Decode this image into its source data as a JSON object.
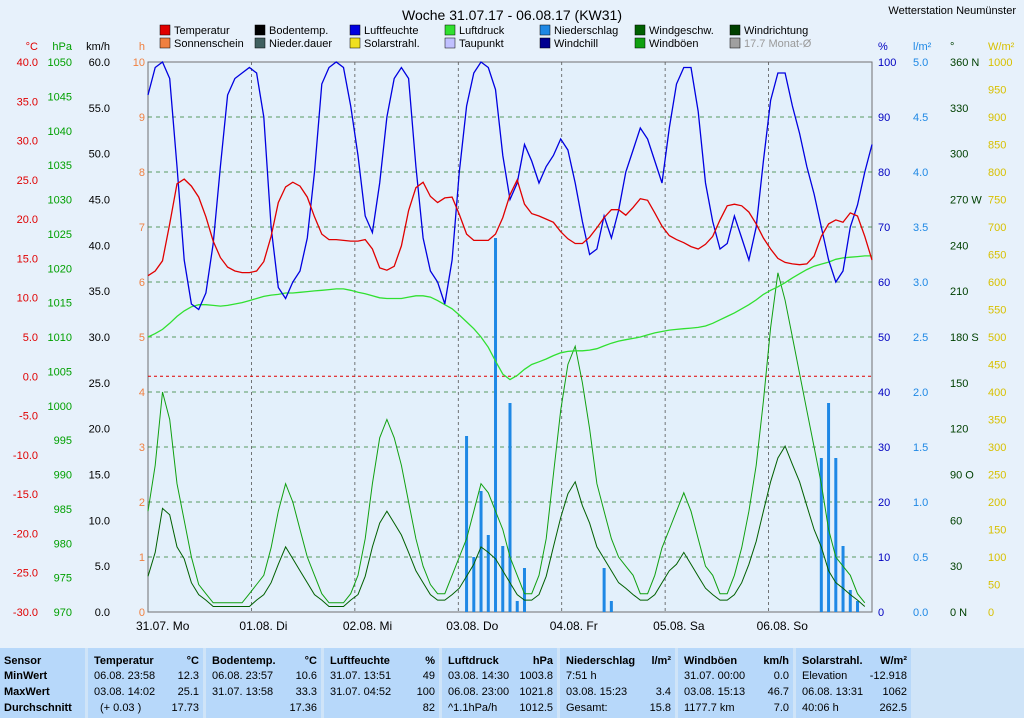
{
  "station": "Wetterstation Neumünster",
  "chart_data": {
    "type": "line",
    "title": "Woche 31.07.17 - 06.08.17 (KW31)",
    "x_labels": [
      "31.07.  Mo",
      "01.08.  Di",
      "02.08.  Mi",
      "03.08.  Do",
      "04.08.  Fr",
      "05.08.  Sa",
      "06.08.  So"
    ],
    "legend": [
      {
        "name": "Temperatur",
        "color": "#e00000"
      },
      {
        "name": "Bodentemp.",
        "color": "#000000"
      },
      {
        "name": "Luftfeuchte",
        "color": "#0000e0"
      },
      {
        "name": "Luftdruck",
        "color": "#30e030"
      },
      {
        "name": "Niederschlag",
        "color": "#1e88e5"
      },
      {
        "name": "Windgeschw.",
        "color": "#006000"
      },
      {
        "name": "Windrichtung",
        "color": "#004000"
      },
      {
        "name": "Sonnenschein",
        "color": "#f08040"
      },
      {
        "name": "Nieder.dauer",
        "color": "#406060"
      },
      {
        "name": "Solarstrahl.",
        "color": "#f0e020"
      },
      {
        "name": "Taupunkt",
        "color": "#c0c0ff"
      },
      {
        "name": "Windchill",
        "color": "#000090"
      },
      {
        "name": "Windböen",
        "color": "#10a010"
      },
      {
        "name": "17.7 Monat-Ø",
        "color": "#a0a0a0"
      }
    ],
    "axes": {
      "temp": {
        "unit": "°C",
        "color": "#e00000",
        "ticks": [
          "40.0",
          "35.0",
          "30.0",
          "25.0",
          "20.0",
          "15.0",
          "10.0",
          "5.0",
          "0.0",
          "-5.0",
          "-10.0",
          "-15.0",
          "-20.0",
          "-25.0",
          "-30.0"
        ]
      },
      "pressure": {
        "unit": "hPa",
        "color": "#00a000",
        "ticks": [
          "1050",
          "1045",
          "1040",
          "1035",
          "1030",
          "1025",
          "1020",
          "1015",
          "1010",
          "1005",
          "1000",
          "995",
          "990",
          "985",
          "980",
          "975",
          "970"
        ]
      },
      "wind": {
        "unit": "km/h",
        "color": "#000000",
        "ticks": [
          "60.0",
          "55.0",
          "50.0",
          "45.0",
          "40.0",
          "35.0",
          "30.0",
          "25.0",
          "20.0",
          "15.0",
          "10.0",
          "5.0",
          "0.0"
        ]
      },
      "sun": {
        "unit": "h",
        "color": "#f08040",
        "ticks": [
          "10",
          "9",
          "8",
          "7",
          "6",
          "5",
          "4",
          "3",
          "2",
          "1",
          "0"
        ]
      },
      "humidity": {
        "unit": "%",
        "color": "#0000c0",
        "ticks": [
          "100",
          "90",
          "80",
          "70",
          "60",
          "50",
          "40",
          "30",
          "20",
          "10",
          "0"
        ]
      },
      "rain": {
        "unit": "l/m²",
        "color": "#1e88e5",
        "ticks": [
          "5.0",
          "4.5",
          "4.0",
          "3.5",
          "3.0",
          "2.5",
          "2.0",
          "1.5",
          "1.0",
          "0.5",
          "0.0"
        ]
      },
      "direction": {
        "unit": "°",
        "color": "#004000",
        "ticks": [
          "360 N",
          "330",
          "300",
          "270 W",
          "240",
          "210",
          "180 S",
          "150",
          "120",
          "90 O",
          "60",
          "30",
          "0 N"
        ]
      },
      "solar": {
        "unit": "W/m²",
        "color": "#d8c000",
        "ticks": [
          "1000",
          "950",
          "900",
          "850",
          "800",
          "750",
          "700",
          "650",
          "600",
          "550",
          "500",
          "450",
          "400",
          "350",
          "300",
          "250",
          "200",
          "150",
          "100",
          "50",
          "0"
        ]
      }
    },
    "series": {
      "temperatur": [
        12.8,
        13.4,
        14.7,
        19.4,
        24.5,
        25.1,
        24.2,
        22.8,
        20.3,
        17.2,
        15.1,
        13.9,
        13.4,
        13.2,
        13.2,
        13.4,
        14.6,
        17.8,
        22.1,
        24.1,
        24.7,
        24.2,
        22.8,
        20.3,
        18.1,
        17.4,
        17.4,
        17.3,
        17.2,
        17.2,
        17.4,
        16.2,
        13.8,
        13.5,
        14.0,
        16.6,
        21.1,
        24.0,
        24.7,
        22.9,
        22.1,
        22.7,
        22.8,
        20.6,
        18.1,
        17.3,
        17.3,
        17.3,
        18.1,
        20.2,
        23.1,
        25.0,
        21.9,
        20.7,
        20.4,
        20.0,
        19.6,
        18.4,
        17.5,
        16.9,
        16.9,
        17.7,
        18.9,
        20.2,
        21.2,
        21.2,
        20.5,
        21.5,
        22.6,
        22.4,
        20.8,
        19.1,
        17.9,
        17.4,
        17.0,
        16.5,
        16.2,
        16.8,
        17.8,
        19.9,
        21.7,
        21.9,
        21.7,
        20.9,
        19.4,
        17.6,
        16.2,
        15.0,
        14.5,
        14.3,
        14.2,
        14.3,
        15.3,
        17.8,
        19.4,
        19.9,
        19.6,
        20.8,
        20.4,
        17.8,
        14.8
      ],
      "luftfeuchte": [
        94,
        99,
        100,
        97,
        81,
        64,
        56,
        55,
        58,
        67,
        81,
        94,
        97,
        98,
        99,
        98,
        90,
        70,
        59,
        57,
        60,
        62,
        68,
        80,
        96,
        99,
        100,
        99,
        92,
        83,
        72,
        69,
        78,
        90,
        97,
        99,
        97,
        81,
        68,
        62,
        60,
        56,
        64,
        80,
        92,
        98,
        100,
        99,
        95,
        83,
        75,
        78,
        85,
        82,
        78,
        81,
        83,
        86,
        84,
        78,
        71,
        65,
        66,
        72,
        68,
        73,
        80,
        84,
        88,
        86,
        82,
        78,
        88,
        96,
        99,
        99,
        91,
        78,
        71,
        66,
        67,
        72,
        68,
        64,
        70,
        82,
        93,
        98,
        98,
        92,
        87,
        81,
        76,
        70,
        64,
        60,
        62,
        70,
        74,
        80,
        85
      ],
      "luftdruck": [
        1010.0,
        1010.5,
        1011.1,
        1012.0,
        1013.0,
        1013.8,
        1014.4,
        1014.7,
        1014.7,
        1014.6,
        1014.5,
        1014.6,
        1014.8,
        1015.0,
        1015.3,
        1015.6,
        1015.9,
        1016.1,
        1016.2,
        1016.4,
        1016.4,
        1016.5,
        1016.6,
        1016.7,
        1016.8,
        1016.9,
        1017.0,
        1017.0,
        1016.8,
        1016.5,
        1016.3,
        1016.0,
        1015.7,
        1015.6,
        1015.6,
        1015.6,
        1015.8,
        1016.0,
        1016.0,
        1015.8,
        1015.3,
        1014.7,
        1014.1,
        1013.2,
        1012.2,
        1011.2,
        1010.0,
        1008.5,
        1006.5,
        1004.6,
        1003.8,
        1004.4,
        1005.3,
        1006.0,
        1006.4,
        1006.8,
        1007.3,
        1007.7,
        1007.9,
        1008.0,
        1008.0,
        1008.1,
        1008.3,
        1008.7,
        1009.1,
        1009.4,
        1009.6,
        1009.8,
        1010.0,
        1010.3,
        1010.6,
        1010.8,
        1011.0,
        1011.1,
        1011.2,
        1011.3,
        1011.4,
        1011.6,
        1012.0,
        1012.5,
        1013.0,
        1013.5,
        1014.1,
        1014.7,
        1015.4,
        1016.2,
        1016.8,
        1017.3,
        1017.9,
        1018.6,
        1019.2,
        1019.8,
        1020.3,
        1020.6,
        1020.9,
        1021.3,
        1021.5,
        1021.6,
        1021.7,
        1021.8,
        1021.8
      ],
      "niederschlag": [
        0,
        0,
        0,
        0,
        0,
        0,
        0,
        0,
        0,
        0,
        0,
        0,
        0,
        0,
        0,
        0,
        0,
        0,
        0,
        0,
        0,
        0,
        0,
        0,
        0,
        0,
        0,
        0,
        0,
        0,
        0,
        0,
        0,
        0,
        0,
        0,
        0,
        0,
        0,
        0,
        0,
        0,
        0,
        0,
        1.6,
        0.5,
        1.1,
        0.7,
        3.4,
        0.6,
        1.9,
        0.1,
        0.4,
        0,
        0,
        0,
        0,
        0,
        0,
        0,
        0,
        0,
        0,
        0.4,
        0.1,
        0,
        0,
        0,
        0,
        0,
        0,
        0,
        0,
        0,
        0,
        0,
        0,
        0,
        0,
        0,
        0,
        0,
        0,
        0,
        0,
        0,
        0,
        0,
        0,
        0,
        0,
        0,
        0,
        1.4,
        1.9,
        1.4,
        0.6,
        0.2,
        0.1,
        0,
        0
      ],
      "windgeschw": [
        3.9,
        6.5,
        11.3,
        10.6,
        7.1,
        5.8,
        3.2,
        1.9,
        1.3,
        0.6,
        0.6,
        0.6,
        0.6,
        0.6,
        0.6,
        1.3,
        1.9,
        3.2,
        5.2,
        7.1,
        5.8,
        4.5,
        3.2,
        1.9,
        1.3,
        0.6,
        0.6,
        0.6,
        1.3,
        1.9,
        3.9,
        7.1,
        9.7,
        11.0,
        9.7,
        8.4,
        6.5,
        4.5,
        3.2,
        1.9,
        1.3,
        1.3,
        1.9,
        2.6,
        3.9,
        5.2,
        7.1,
        6.5,
        5.8,
        4.5,
        3.2,
        1.9,
        1.3,
        1.3,
        1.9,
        3.9,
        7.1,
        10.3,
        12.9,
        14.2,
        11.6,
        9.7,
        7.1,
        5.8,
        4.5,
        3.2,
        2.6,
        1.9,
        1.3,
        1.3,
        1.9,
        3.2,
        4.5,
        5.2,
        6.5,
        5.2,
        3.9,
        2.6,
        1.9,
        1.3,
        1.3,
        1.9,
        3.2,
        5.2,
        7.7,
        11.0,
        14.2,
        16.8,
        18.1,
        16.1,
        14.2,
        11.6,
        9.0,
        7.1,
        4.5,
        3.2,
        2.6,
        1.9,
        1.3,
        0.6
      ],
      "windboeen": [
        11,
        16,
        24,
        21,
        14,
        10,
        6,
        3,
        2,
        1,
        1,
        1,
        1,
        1,
        2,
        3,
        4,
        7,
        11,
        14,
        12,
        9,
        6,
        4,
        2,
        1,
        1,
        1,
        2,
        4,
        8,
        14,
        19,
        21,
        19,
        16,
        12,
        8,
        5,
        3,
        2,
        2,
        4,
        6,
        8,
        11,
        14,
        13,
        11,
        9,
        6,
        4,
        2,
        2,
        4,
        8,
        15,
        22,
        27,
        29,
        25,
        20,
        14,
        11,
        8,
        6,
        5,
        4,
        2,
        2,
        4,
        7,
        9,
        11,
        13,
        11,
        8,
        5,
        4,
        2,
        2,
        4,
        7,
        11,
        16,
        23,
        31,
        37,
        34,
        30,
        26,
        22,
        18,
        14,
        9,
        6,
        5,
        4,
        2,
        1
      ]
    }
  },
  "summary": {
    "row_labels": [
      "Sensor",
      "MinWert",
      "MaxWert",
      "Durchschnitt"
    ],
    "temp": {
      "title": "Temperatur",
      "unit": "°C",
      "min_time": "06.08.  23:58",
      "min": "12.3",
      "max_time": "03.08.  14:02",
      "max": "25.1",
      "trend": "(+ 0.03 )",
      "avg": "17.73"
    },
    "boden": {
      "title": "Bodentemp.",
      "unit": "°C",
      "min_time": "06.08.  23:57",
      "min": "10.6",
      "max_time": "31.07.  13:58",
      "max": "33.3",
      "avg": "17.36"
    },
    "feuchte": {
      "title": "Luftfeuchte",
      "unit": "%",
      "min_time": "31.07.  13:51",
      "min": "49",
      "max_time": "31.07.  04:52",
      "max": "100",
      "avg": "82"
    },
    "druck": {
      "title": "Luftdruck",
      "unit": "hPa",
      "min_time": "03.08.  14:30",
      "min": "1003.8",
      "max_time": "06.08.  23:00",
      "max": "1021.8",
      "trend": "^1.1hPa/h",
      "avg": "1012.5"
    },
    "regen": {
      "title": "Niederschlag",
      "unit": "l/m²",
      "r1": "7:51 h",
      "max_time": "03.08.  15:23",
      "max": "3.4",
      "sum_label": "Gesamt:",
      "sum": "15.8"
    },
    "boeen": {
      "title": "Windböen",
      "unit": "km/h",
      "min_time": "31.07.  00:00",
      "min": "0.0",
      "max_time": "03.08.  15:13",
      "max": "46.7",
      "dist": "1177.7 km",
      "avg": "7.0"
    },
    "solar": {
      "title": "Solarstrahl.",
      "unit": "W/m²",
      "elev_label": "Elevation",
      "elev": "-12.918",
      "max_time": "06.08.  13:31",
      "max": "1062",
      "dur": "40:06 h",
      "avg": "262.5"
    }
  }
}
